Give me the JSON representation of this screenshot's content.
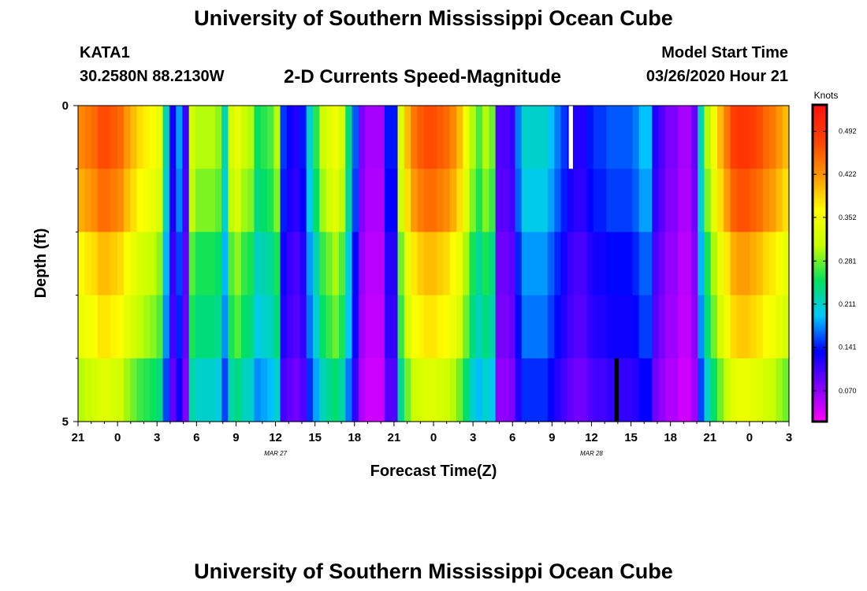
{
  "header": {
    "title": "University of Southern Mississippi Ocean Cube",
    "station": "KATA1",
    "coords": "30.2580N 88.2130W",
    "subtitle": "2-D Currents Speed-Magnitude",
    "model_start_label": "Model Start Time",
    "model_start_value": "03/26/2020 Hour 21"
  },
  "footer": {
    "title": "University of Southern Mississippi Ocean Cube"
  },
  "chart_data": {
    "type": "heatmap",
    "xlabel": "Forecast Time(Z)",
    "ylabel": "Depth (ft)",
    "x_ticks": [
      "21",
      "0",
      "3",
      "6",
      "9",
      "12",
      "15",
      "18",
      "21",
      "0",
      "3",
      "6",
      "9",
      "12",
      "15",
      "18",
      "21",
      "0",
      "3"
    ],
    "date_labels": [
      {
        "text": "MAR 27",
        "tick_index": 5
      },
      {
        "text": "MAR 28",
        "tick_index": 13
      }
    ],
    "y_ticks": [
      "0",
      "5"
    ],
    "ylim": [
      0,
      5
    ],
    "colorbar": {
      "label": "Knots",
      "ticks": [
        "0.070",
        "0.141",
        "0.211",
        "0.281",
        "0.352",
        "0.422",
        "0.492"
      ],
      "tick_values": [
        0.07,
        0.141,
        0.211,
        0.281,
        0.352,
        0.422,
        0.492
      ],
      "range": [
        0.02,
        0.535
      ],
      "colors": [
        "#ff00ff",
        "#8000ff",
        "#0000ff",
        "#00c8ff",
        "#00e060",
        "#c8ff00",
        "#ffff00",
        "#ff9600",
        "#ff4000",
        "#ff1010"
      ]
    },
    "time_step_hours": 1,
    "depth_levels_ft": [
      0.5,
      1.5,
      2.5,
      3.5,
      4.5
    ],
    "surface_values": [
      0.43,
      0.44,
      0.45,
      0.47,
      0.47,
      0.46,
      0.45,
      0.42,
      0.4,
      0.38,
      0.37,
      0.36,
      0.34,
      0.22,
      0.13,
      0.18,
      0.11,
      0.32,
      0.3,
      0.3,
      0.3,
      0.29,
      0.22,
      0.32,
      0.34,
      0.31,
      0.3,
      0.25,
      0.26,
      0.27,
      0.3,
      0.15,
      0.13,
      0.12,
      0.14,
      0.21,
      0.26,
      0.31,
      0.33,
      0.35,
      0.32,
      0.24,
      0.16,
      0.08,
      0.06,
      0.06,
      0.06,
      0.14,
      0.14,
      0.33,
      0.4,
      0.44,
      0.46,
      0.47,
      0.47,
      0.46,
      0.45,
      0.43,
      0.4,
      0.35,
      0.3,
      0.27,
      0.3,
      0.28,
      0.1,
      0.1,
      0.11,
      0.17,
      0.21,
      0.21,
      0.21,
      0.21,
      0.19,
      0.17,
      0.15,
      0.13,
      0.12,
      0.12,
      0.14,
      0.15,
      0.15,
      0.16,
      0.16,
      0.16,
      0.16,
      0.17,
      0.19,
      0.19,
      0.12,
      0.1,
      0.08,
      0.08,
      0.06,
      0.06,
      0.09,
      0.22,
      0.3,
      0.35,
      0.4,
      0.44,
      0.48,
      0.49,
      0.49,
      0.48,
      0.47,
      0.45,
      0.44,
      0.42,
      0.4
    ],
    "depth_factors": [
      1.0,
      0.95,
      0.85,
      0.8,
      0.7
    ],
    "missing_cells": [
      {
        "time_index": 75,
        "depth_index": 0
      },
      {
        "time_index": 82,
        "depth_index": 4
      }
    ]
  }
}
